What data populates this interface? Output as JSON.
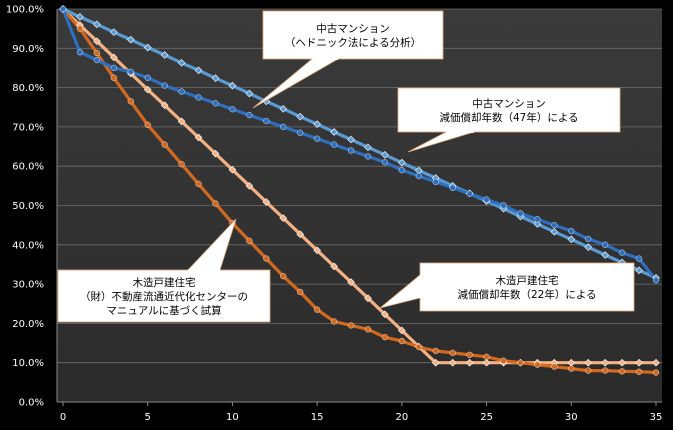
{
  "chart_data": {
    "type": "line",
    "title": "",
    "xlabel": "",
    "ylabel": "",
    "xlim": [
      0,
      35
    ],
    "ylim": [
      0,
      100
    ],
    "x_ticks": [
      0,
      5,
      10,
      15,
      20,
      25,
      30,
      35
    ],
    "y_ticks": [
      0,
      10,
      20,
      30,
      40,
      50,
      60,
      70,
      80,
      90,
      100
    ],
    "y_tick_labels": [
      "0.0%",
      "10.0%",
      "20.0%",
      "30.0%",
      "40.0%",
      "50.0%",
      "60.0%",
      "70.0%",
      "80.0%",
      "90.0%",
      "100.0%"
    ],
    "grid": "horizontal",
    "legend": "none",
    "series": [
      {
        "color": "#5b9bd5",
        "marker": "diamond",
        "x": [
          0,
          1,
          2,
          3,
          4,
          5,
          6,
          7,
          8,
          9,
          10,
          11,
          12,
          13,
          14,
          15,
          16,
          17,
          18,
          19,
          20,
          21,
          22,
          23,
          24,
          25,
          26,
          27,
          28,
          29,
          30,
          31,
          32,
          33,
          34,
          35
        ],
        "values": [
          100.0,
          98.0,
          96.1,
          94.1,
          92.2,
          90.2,
          88.3,
          86.3,
          84.4,
          82.4,
          80.5,
          78.5,
          76.5,
          74.6,
          72.6,
          70.7,
          68.7,
          66.8,
          64.8,
          62.9,
          60.9,
          58.9,
          57.0,
          55.0,
          53.1,
          51.1,
          49.2,
          47.2,
          45.3,
          43.3,
          41.4,
          39.4,
          37.4,
          35.5,
          33.5,
          31.6
        ]
      },
      {
        "color": "#2e6fc0",
        "marker": "circle",
        "x": [
          0,
          1,
          2,
          3,
          4,
          5,
          6,
          7,
          8,
          9,
          10,
          11,
          12,
          13,
          14,
          15,
          16,
          17,
          18,
          19,
          20,
          21,
          22,
          23,
          24,
          25,
          26,
          27,
          28,
          29,
          30,
          31,
          32,
          33,
          34,
          35
        ],
        "values": [
          100.0,
          89.0,
          87.0,
          85.0,
          84.0,
          82.5,
          80.5,
          79.0,
          77.5,
          76.0,
          74.5,
          73.0,
          71.5,
          70.0,
          68.5,
          67.0,
          65.5,
          64.0,
          62.5,
          61.0,
          59.0,
          57.5,
          56.0,
          54.5,
          53.0,
          51.5,
          50.0,
          48.0,
          46.5,
          45.0,
          43.5,
          41.5,
          40.0,
          38.0,
          36.5,
          31.0
        ]
      },
      {
        "color": "#f4b183",
        "marker": "diamond",
        "x": [
          0,
          1,
          2,
          3,
          4,
          5,
          6,
          7,
          8,
          9,
          10,
          11,
          12,
          13,
          14,
          15,
          16,
          17,
          18,
          19,
          20,
          21,
          22,
          23,
          24,
          25,
          26,
          27,
          28,
          29,
          30,
          31,
          32,
          33,
          34,
          35
        ],
        "values": [
          100.0,
          95.9,
          91.8,
          87.7,
          83.6,
          79.5,
          75.5,
          71.4,
          67.3,
          63.2,
          59.1,
          55.0,
          50.9,
          46.8,
          42.7,
          38.6,
          34.5,
          30.5,
          26.4,
          22.3,
          18.2,
          14.1,
          10.0,
          10.0,
          10.0,
          10.0,
          10.0,
          10.0,
          10.0,
          10.0,
          10.0,
          10.0,
          10.0,
          10.0,
          10.0,
          10.0
        ]
      },
      {
        "color": "#d2691e",
        "marker": "circle",
        "x": [
          0,
          1,
          2,
          3,
          4,
          5,
          6,
          7,
          8,
          9,
          10,
          11,
          12,
          13,
          14,
          15,
          16,
          17,
          18,
          19,
          20,
          21,
          22,
          23,
          24,
          25,
          26,
          27,
          28,
          29,
          30,
          31,
          32,
          33,
          34,
          35
        ],
        "values": [
          100.0,
          95.0,
          88.8,
          82.5,
          76.5,
          70.5,
          65.5,
          60.5,
          55.5,
          50.5,
          45.5,
          41.0,
          36.5,
          32.0,
          28.0,
          23.5,
          20.5,
          19.5,
          18.5,
          16.5,
          15.5,
          14.0,
          13.0,
          12.5,
          12.0,
          11.5,
          10.5,
          10.0,
          9.5,
          9.0,
          8.5,
          8.0,
          8.0,
          7.8,
          7.7,
          7.5
        ]
      }
    ],
    "annotations": [
      {
        "lines": [
          "中古マンション",
          "（ヘドニック法による分析）"
        ]
      },
      {
        "lines": [
          "中古マンション",
          "減価償却年数（47年）による"
        ]
      },
      {
        "lines": [
          "木造戸建住宅",
          "（財）不動産流通近代化センターの",
          "マニュアルに基づく試算"
        ]
      },
      {
        "lines": [
          "木造戸建住宅",
          "減価償却年数（22年）による"
        ]
      }
    ]
  }
}
